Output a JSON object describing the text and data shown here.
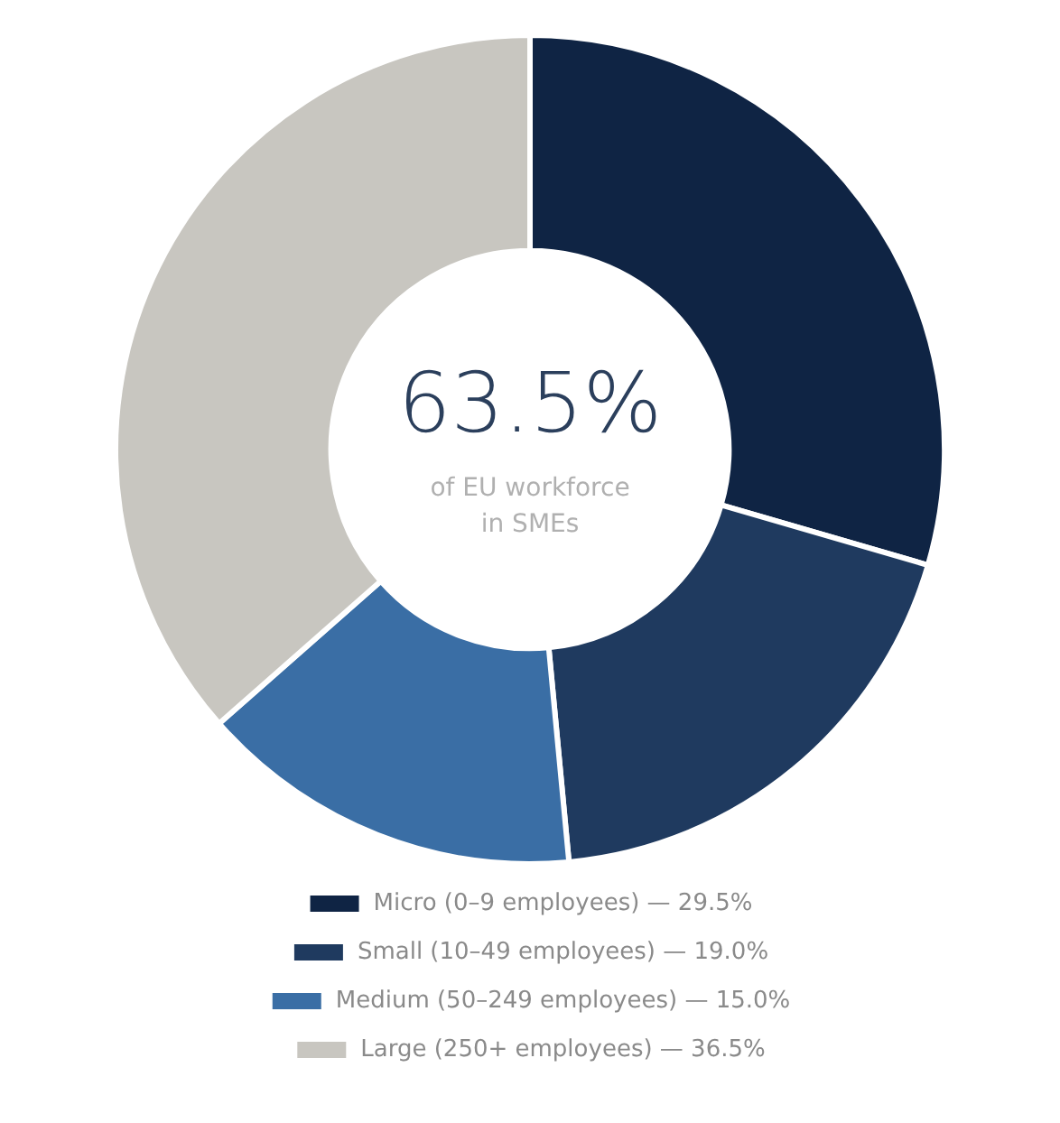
{
  "chart_data": {
    "type": "donut",
    "categories": [
      "Micro (0–9 employees) — 29.5%",
      "Small (10–49 employees) — 19.0%",
      "Medium (50–249 employees) — 15.0%",
      "Large (250+ employees) — 36.5%"
    ],
    "values": [
      29.5,
      19.0,
      15.0,
      36.5
    ],
    "colors": [
      "#0f2444",
      "#1f3a5f",
      "#3a6ea5",
      "#c8c6c0"
    ],
    "annotations": [
      "63.5%",
      "of EU workforce",
      "in SMEs"
    ],
    "legend": "bottom"
  }
}
